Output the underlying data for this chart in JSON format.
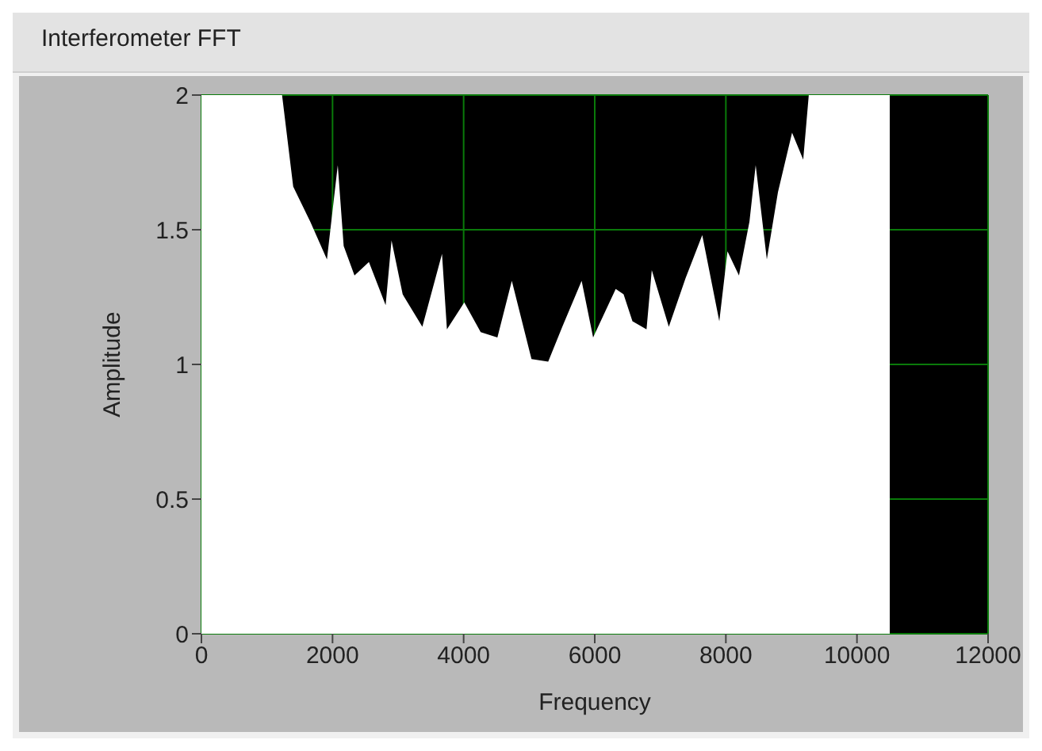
{
  "chart_data": {
    "type": "area",
    "title": "Interferometer FFT",
    "xlabel": "Frequency",
    "ylabel": "Amplitude",
    "x": [
      0,
      1200,
      1230,
      1400,
      1660,
      1915,
      2080,
      2170,
      2335,
      2555,
      2810,
      2900,
      3070,
      3370,
      3670,
      3745,
      4010,
      4260,
      4515,
      4735,
      5035,
      5290,
      5505,
      5800,
      5975,
      6320,
      6440,
      6575,
      6790,
      6870,
      7130,
      7385,
      7640,
      7900,
      8025,
      8200,
      8360,
      8455,
      8625,
      8795,
      9010,
      9180,
      9265,
      10500
    ],
    "series": [
      {
        "color": "#ffffff",
        "values": [
          2,
          2,
          2,
          1.66,
          1.53,
          1.39,
          1.74,
          1.44,
          1.33,
          1.38,
          1.22,
          1.46,
          1.26,
          1.14,
          1.41,
          1.13,
          1.23,
          1.12,
          1.1,
          1.31,
          1.02,
          1.01,
          1.14,
          1.31,
          1.1,
          1.28,
          1.26,
          1.16,
          1.13,
          1.35,
          1.14,
          1.32,
          1.48,
          1.16,
          1.42,
          1.33,
          1.53,
          1.74,
          1.39,
          1.64,
          1.86,
          1.76,
          2,
          2
        ]
      }
    ],
    "xlim": [
      0,
      12000
    ],
    "xticks": [
      0,
      2000,
      4000,
      6000,
      8000,
      10000,
      12000
    ],
    "ylim": [
      0,
      2
    ],
    "yticks": [
      0,
      0.5,
      1,
      1.5,
      2
    ],
    "grid": true
  }
}
